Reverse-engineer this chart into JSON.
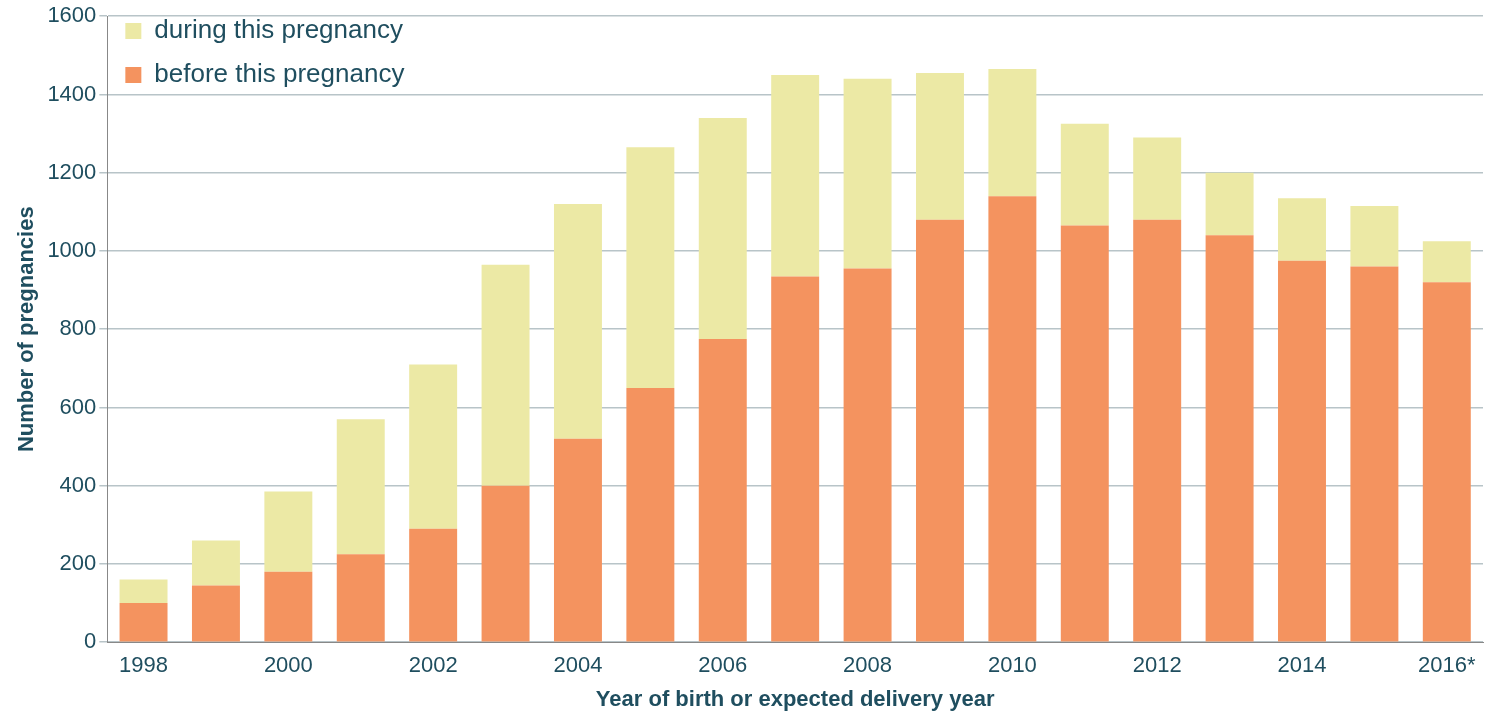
{
  "chart_data": {
    "type": "bar",
    "stacked": true,
    "xlabel": "Year of birth or expected delivery year",
    "ylabel": "Number of pregnancies",
    "categories": [
      "1998",
      null,
      "2000",
      null,
      "2002",
      null,
      "2004",
      null,
      "2006",
      null,
      "2008",
      null,
      "2010",
      null,
      "2012",
      null,
      "2014",
      null,
      "2016*"
    ],
    "series": [
      {
        "name": "before this pregnancy",
        "color": "#f4935f",
        "values": [
          100,
          145,
          180,
          225,
          290,
          400,
          520,
          650,
          775,
          935,
          955,
          1080,
          1140,
          1065,
          1080,
          1040,
          975,
          960,
          920
        ]
      },
      {
        "name": "during this pregnancy",
        "color": "#ece9a5",
        "values": [
          60,
          115,
          205,
          345,
          420,
          565,
          600,
          615,
          565,
          515,
          485,
          375,
          325,
          260,
          210,
          160,
          160,
          155,
          105
        ]
      }
    ],
    "ylim": [
      0,
      1600
    ],
    "yticks": [
      0,
      200,
      400,
      600,
      800,
      1000,
      1200,
      1400,
      1600
    ],
    "grid": "y",
    "legend": "top left"
  }
}
